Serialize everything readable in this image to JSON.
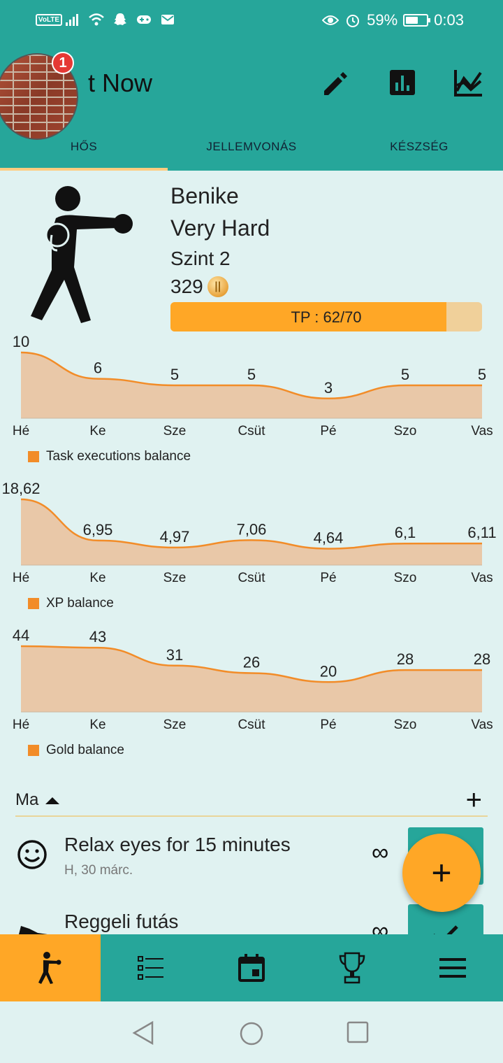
{
  "statusbar": {
    "volte": "VoLTE",
    "battery_text": "59%",
    "battery_level": 0.59,
    "time": "0:03",
    "icons": [
      "volte-icon",
      "signal-icon",
      "wifi-icon",
      "snapchat-icon",
      "game-icon",
      "mail-icon",
      "eye-icon",
      "alarm-icon",
      "battery-icon"
    ]
  },
  "appbar": {
    "title": "t Now",
    "badge_count": "1",
    "actions": [
      "edit-icon",
      "bar-chart-icon",
      "line-chart-icon"
    ],
    "tabs": [
      {
        "label": "HŐS",
        "active": true
      },
      {
        "label": "JELLEMVONÁS",
        "active": false
      },
      {
        "label": "KÉSZSÉG",
        "active": false
      }
    ]
  },
  "hero": {
    "name": "Benike",
    "difficulty": "Very Hard",
    "level": "Szint 2",
    "gold": "329",
    "tp_label": "TP : 62/70",
    "tp_fraction": 0.886
  },
  "chart_data": [
    {
      "type": "area",
      "categories": [
        "Hé",
        "Ke",
        "Sze",
        "Csüt",
        "Pé",
        "Szo",
        "Vas"
      ],
      "values": [
        10,
        6,
        5,
        5,
        3,
        5,
        5
      ],
      "value_labels": [
        "10",
        "6",
        "5",
        "5",
        "3",
        "5",
        "5"
      ],
      "series": [
        {
          "name": "Task executions balance",
          "values": [
            10,
            6,
            5,
            5,
            3,
            5,
            5
          ]
        }
      ],
      "ylim": [
        0,
        10
      ],
      "grid": false,
      "legend_position": "bottom-left",
      "color": "#f28c28"
    },
    {
      "type": "area",
      "categories": [
        "Hé",
        "Ke",
        "Sze",
        "Csüt",
        "Pé",
        "Szo",
        "Vas"
      ],
      "values": [
        18.62,
        6.95,
        4.97,
        7.06,
        4.64,
        6.1,
        6.11
      ],
      "value_labels": [
        "18,62",
        "6,95",
        "4,97",
        "7,06",
        "4,64",
        "6,1",
        "6,11"
      ],
      "series": [
        {
          "name": "XP balance",
          "values": [
            18.62,
            6.95,
            4.97,
            7.06,
            4.64,
            6.1,
            6.11
          ]
        }
      ],
      "ylim": [
        0,
        18.62
      ],
      "grid": false,
      "legend_position": "bottom-left",
      "color": "#f28c28"
    },
    {
      "type": "area",
      "categories": [
        "Hé",
        "Ke",
        "Sze",
        "Csüt",
        "Pé",
        "Szo",
        "Vas"
      ],
      "values": [
        44,
        43,
        31,
        26,
        20,
        28,
        28
      ],
      "value_labels": [
        "44",
        "43",
        "31",
        "26",
        "20",
        "28",
        "28"
      ],
      "series": [
        {
          "name": "Gold balance",
          "values": [
            44,
            43,
            31,
            26,
            20,
            28,
            28
          ]
        }
      ],
      "ylim": [
        0,
        44
      ],
      "grid": false,
      "legend_position": "bottom-left",
      "color": "#f28c28"
    }
  ],
  "list": {
    "day_label": "Ma",
    "add_label": "+",
    "tasks": [
      {
        "title": "Relax eyes for 15 minutes",
        "subtitle": "H, 30 márc.",
        "repeat": "∞",
        "icon": "smiley-icon"
      },
      {
        "title": "Reggeli futás",
        "subtitle": "",
        "repeat": "∞",
        "icon": "sneaker-icon"
      }
    ],
    "fab_label": "+"
  },
  "bottomnav": {
    "items": [
      "hero-icon",
      "tasks-list-icon",
      "calendar-icon",
      "trophy-icon",
      "menu-icon"
    ],
    "active": 0
  },
  "colors": {
    "primary": "#26a69a",
    "accent": "#ffa726",
    "background": "#e0f2f1",
    "chart_line": "#f28c28",
    "chart_fill": "#e9c8a8"
  }
}
